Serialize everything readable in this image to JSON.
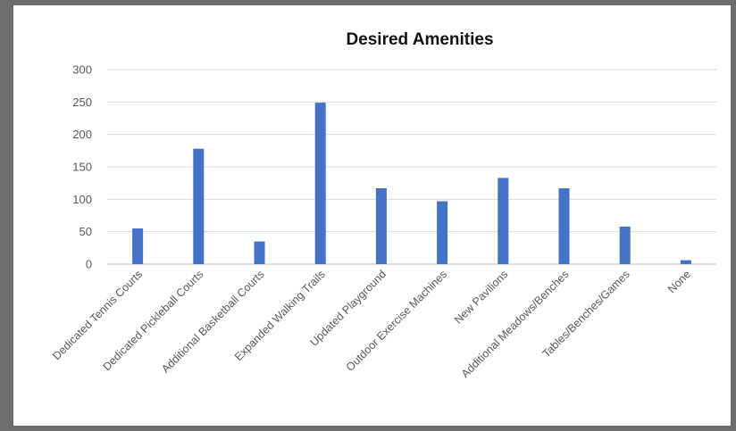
{
  "chart_data": {
    "type": "bar",
    "title": "Desired Amenities",
    "xlabel": "",
    "ylabel": "",
    "ylim": [
      0,
      300
    ],
    "yticks": [
      0,
      50,
      100,
      150,
      200,
      250,
      300
    ],
    "grid": true,
    "legend": "none",
    "bar_color": "#4472C4",
    "categories": [
      "Dedicated Tennis Courts",
      "Dedicated Pickleball Courts",
      "Additional Basketball Courts",
      "Expanded Walking Trails",
      "Updated Playground",
      "Outdoor Exercise Machines",
      "New Pavilions",
      "Additional Meadows/Benches",
      "Tables/Benches/Games",
      "None"
    ],
    "values": [
      55,
      178,
      35,
      249,
      117,
      97,
      133,
      117,
      58,
      6
    ]
  }
}
